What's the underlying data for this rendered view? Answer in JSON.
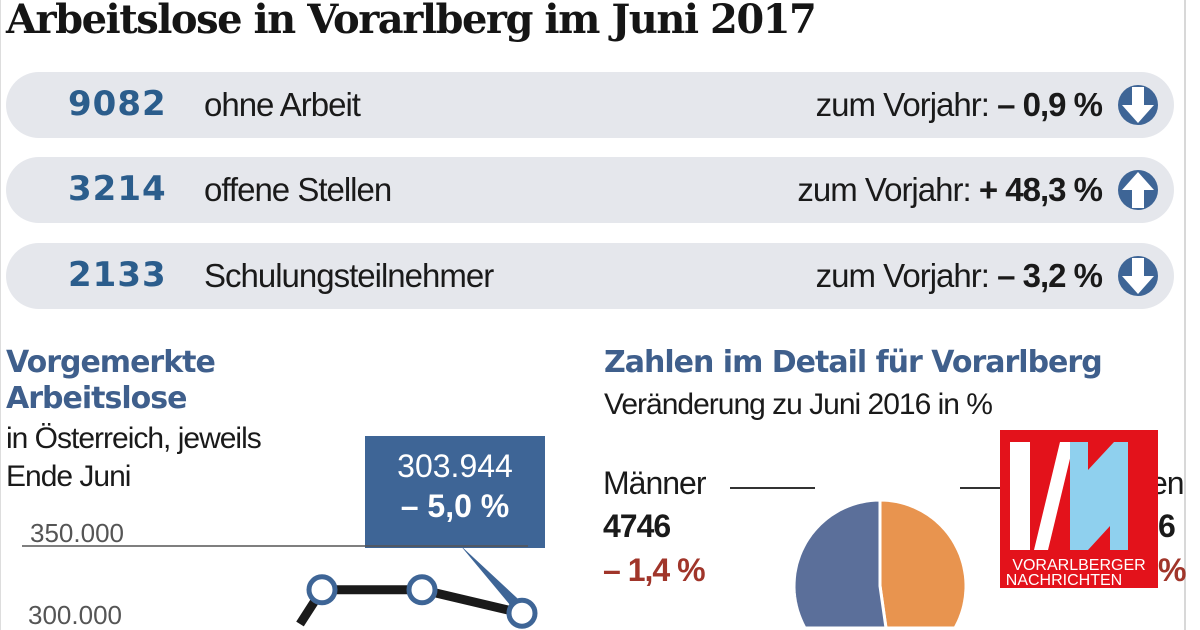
{
  "title": "Arbeitslose in Vorarlberg im Juni 2017",
  "rows": [
    {
      "number": "9082",
      "label": "ohne Arbeit",
      "change_prefix": "zum Vorjahr:",
      "change": "– 0,9 %",
      "direction": "down",
      "icon": "arrow-down-icon"
    },
    {
      "number": "3214",
      "label": "offene Stellen",
      "change_prefix": "zum Vorjahr:",
      "change": "+ 48,3 %",
      "direction": "up",
      "icon": "arrow-up-icon"
    },
    {
      "number": "2133",
      "label": "Schulungsteilnehmer",
      "change_prefix": "zum Vorjahr:",
      "change": "– 3,2 %",
      "direction": "down",
      "icon": "arrow-down-icon"
    }
  ],
  "colors": {
    "accent_blue": "#2b5d8c",
    "pie_blue": "#5b6f9a",
    "pie_orange": "#e8944f",
    "negative_red": "#a0352a",
    "logo_red": "#e3121b",
    "logo_light_blue": "#8fd0ee"
  },
  "chart_data": [
    {
      "type": "line",
      "title": "Vorgemerkte Arbeitslose",
      "subtitle": "in Österreich, jeweils Ende Juni",
      "y_ticks": [
        "350.000",
        "300.000"
      ],
      "ylim": [
        300000,
        350000
      ],
      "grid": true,
      "values": [
        320000,
        320000,
        303944
      ],
      "annotation": {
        "value": "303.944",
        "change": "– 5,0 %"
      }
    },
    {
      "type": "pie",
      "title": "Zahlen im Detail für Vorarlberg",
      "subtitle": "Veränderung zu Juni 2016 in %",
      "slices": [
        {
          "name": "Männer",
          "value": 4746,
          "change": "– 1,4 %",
          "color": "#5b6f9a"
        },
        {
          "name_visible": "en",
          "value_visible": "6",
          "change_visible": "%",
          "value": 4336,
          "color": "#e8944f"
        }
      ]
    }
  ],
  "logo": {
    "text_line1": "VORARLBERGER",
    "text_line2": "NACHRICHTEN",
    "mark": "VN"
  }
}
